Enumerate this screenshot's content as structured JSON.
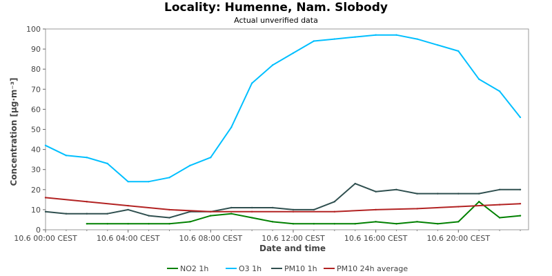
{
  "chart_data": {
    "type": "line",
    "title": "Locality: Humenne, Nam. Slobody",
    "subtitle": "Actual unverified data",
    "xlabel": "Date and time",
    "ylabel": "Concentration [µg·m⁻³]",
    "ylim": [
      0,
      100
    ],
    "y_ticks": [
      0,
      10,
      20,
      30,
      40,
      50,
      60,
      70,
      80,
      90,
      100
    ],
    "x_ticks": [
      0,
      4,
      8,
      12,
      16,
      20
    ],
    "x_tick_labels": [
      "10.6 00:00 CEST",
      "10.6 04:00 CEST",
      "10.6 08:00 CEST",
      "10.6 12:00 CEST",
      "10.6 16:00 CEST",
      "10.6 20:00 CEST"
    ],
    "x_unit": "hour of 10.6",
    "xlim": [
      0,
      23.4
    ],
    "grid": true,
    "legend_position": "bottom",
    "series": [
      {
        "name": "NO2 1h",
        "color": "#008000",
        "x": [
          2,
          3,
          4,
          5,
          6,
          7,
          8,
          9,
          10,
          11,
          12,
          13,
          14,
          15,
          16,
          17,
          18,
          19,
          20,
          21,
          22,
          23
        ],
        "values": [
          3,
          3,
          3,
          3,
          3,
          4,
          7,
          8,
          6,
          4,
          3,
          3,
          3,
          3,
          4,
          3,
          4,
          3,
          4,
          14,
          6,
          7
        ]
      },
      {
        "name": "O3 1h",
        "color": "#00bfff",
        "x": [
          0,
          1,
          2,
          3,
          4,
          5,
          6,
          7,
          8,
          9,
          10,
          11,
          12,
          13,
          14,
          15,
          16,
          17,
          18,
          19,
          20,
          21,
          22,
          23
        ],
        "values": [
          42,
          37,
          36,
          33,
          24,
          24,
          26,
          32,
          36,
          51,
          73,
          82,
          88,
          94,
          95,
          96,
          97,
          97,
          95,
          92,
          89,
          75,
          69,
          56
        ]
      },
      {
        "name": "PM10 1h",
        "color": "#2f4f4f",
        "x": [
          0,
          1,
          2,
          3,
          4,
          5,
          6,
          7,
          8,
          9,
          10,
          11,
          12,
          13,
          14,
          15,
          16,
          17,
          18,
          19,
          20,
          21,
          22,
          23
        ],
        "values": [
          9,
          8,
          8,
          8,
          10,
          7,
          6,
          9,
          9,
          11,
          11,
          11,
          10,
          10,
          14,
          23,
          19,
          20,
          18,
          18,
          18,
          18,
          20,
          20
        ]
      },
      {
        "name": "PM10 24h average",
        "color": "#b22222",
        "x": [
          0,
          2,
          4,
          6,
          8,
          10,
          12,
          14,
          16,
          18,
          20,
          22,
          23
        ],
        "values": [
          16,
          14,
          12,
          10,
          9,
          9,
          9,
          9,
          10,
          10.5,
          11.5,
          12.5,
          13
        ]
      }
    ]
  }
}
